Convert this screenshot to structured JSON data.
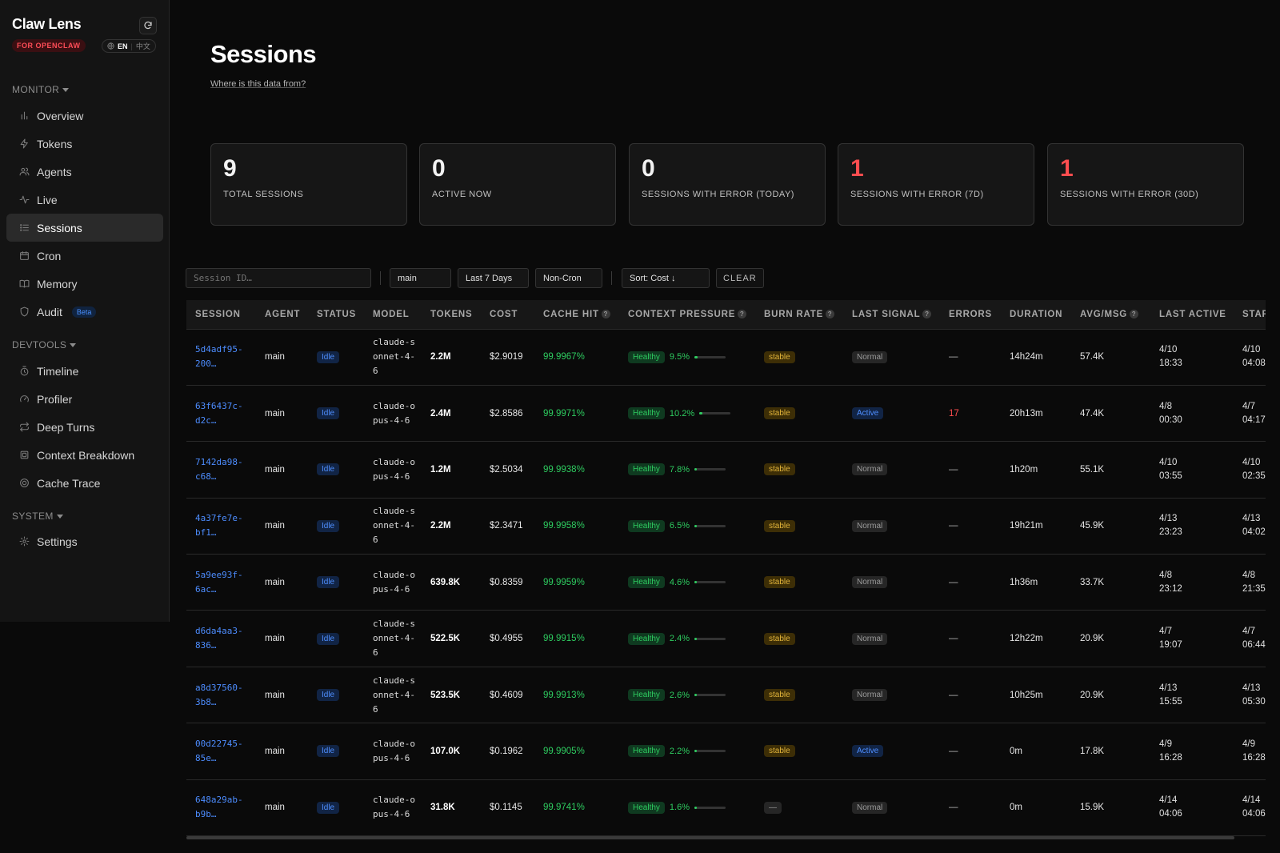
{
  "app": {
    "title": "Claw Lens",
    "badge": "FOR OPENCLAW",
    "lang_en": "EN",
    "lang_sep": "|",
    "lang_zh": "中文"
  },
  "sidebar": {
    "sections": [
      {
        "label": "MONITOR",
        "items": [
          {
            "label": "Overview",
            "icon": "bar-chart-icon"
          },
          {
            "label": "Tokens",
            "icon": "bolt-icon"
          },
          {
            "label": "Agents",
            "icon": "users-icon"
          },
          {
            "label": "Live",
            "icon": "activity-icon"
          },
          {
            "label": "Sessions",
            "icon": "list-icon",
            "active": true
          },
          {
            "label": "Cron",
            "icon": "calendar-icon"
          },
          {
            "label": "Memory",
            "icon": "book-icon"
          },
          {
            "label": "Audit",
            "icon": "shield-icon",
            "badge": "Beta"
          }
        ]
      },
      {
        "label": "DEVTOOLS",
        "items": [
          {
            "label": "Timeline",
            "icon": "timer-icon"
          },
          {
            "label": "Profiler",
            "icon": "gauge-icon"
          },
          {
            "label": "Deep Turns",
            "icon": "repeat-icon"
          },
          {
            "label": "Context Breakdown",
            "icon": "layers-icon"
          },
          {
            "label": "Cache Trace",
            "icon": "target-icon"
          }
        ]
      },
      {
        "label": "SYSTEM",
        "items": [
          {
            "label": "Settings",
            "icon": "gear-icon"
          }
        ]
      }
    ]
  },
  "main": {
    "title": "Sessions",
    "data_link": "Where is this data from?"
  },
  "stats": [
    {
      "value": "9",
      "label": "TOTAL SESSIONS",
      "error": false
    },
    {
      "value": "0",
      "label": "ACTIVE NOW",
      "error": false
    },
    {
      "value": "0",
      "label": "SESSIONS WITH ERROR (TODAY)",
      "error": false
    },
    {
      "value": "1",
      "label": "SESSIONS WITH ERROR (7D)",
      "error": true
    },
    {
      "value": "1",
      "label": "SESSIONS WITH ERROR (30D)",
      "error": true
    }
  ],
  "filters": {
    "session_placeholder": "Session ID…",
    "agent": "main",
    "range": "Last 7 Days",
    "cron": "Non-Cron",
    "sort": "Sort: Cost ↓",
    "clear": "CLEAR"
  },
  "table": {
    "columns": [
      {
        "label": "SESSION",
        "help": false
      },
      {
        "label": "AGENT",
        "help": false
      },
      {
        "label": "STATUS",
        "help": false
      },
      {
        "label": "MODEL",
        "help": false
      },
      {
        "label": "TOKENS",
        "help": false
      },
      {
        "label": "COST",
        "help": false
      },
      {
        "label": "CACHE HIT",
        "help": true
      },
      {
        "label": "CONTEXT PRESSURE",
        "help": true
      },
      {
        "label": "BURN RATE",
        "help": true
      },
      {
        "label": "LAST SIGNAL",
        "help": true
      },
      {
        "label": "ERRORS",
        "help": false
      },
      {
        "label": "DURATION",
        "help": false
      },
      {
        "label": "AVG/MSG",
        "help": true
      },
      {
        "label": "LAST ACTIVE",
        "help": false
      },
      {
        "label": "STARTED",
        "help": false
      }
    ],
    "rows": [
      {
        "session": "5d4adf95-200…",
        "agent": "main",
        "status": "Idle",
        "model": "claude-sonnet-4-6",
        "tokens": "2.2M",
        "cost": "$2.9019",
        "cache": "99.9967%",
        "ctx_label": "Healthy",
        "ctx_pct": "9.5%",
        "ctx_frac": 0.095,
        "burn": "stable",
        "signal": "Normal",
        "errors": "—",
        "duration": "14h24m",
        "avg": "57.4K",
        "last_date": "4/10",
        "last_time": "18:33",
        "start_date": "4/10",
        "start_time": "04:08"
      },
      {
        "session": "63f6437c-d2c…",
        "agent": "main",
        "status": "Idle",
        "model": "claude-opus-4-6",
        "tokens": "2.4M",
        "cost": "$2.8586",
        "cache": "99.9971%",
        "ctx_label": "Healthy",
        "ctx_pct": "10.2%",
        "ctx_frac": 0.102,
        "burn": "stable",
        "signal": "Active",
        "errors": "17",
        "duration": "20h13m",
        "avg": "47.4K",
        "last_date": "4/8",
        "last_time": "00:30",
        "start_date": "4/7",
        "start_time": "04:17"
      },
      {
        "session": "7142da98-c68…",
        "agent": "main",
        "status": "Idle",
        "model": "claude-opus-4-6",
        "tokens": "1.2M",
        "cost": "$2.5034",
        "cache": "99.9938%",
        "ctx_label": "Healthy",
        "ctx_pct": "7.8%",
        "ctx_frac": 0.078,
        "burn": "stable",
        "signal": "Normal",
        "errors": "—",
        "duration": "1h20m",
        "avg": "55.1K",
        "last_date": "4/10",
        "last_time": "03:55",
        "start_date": "4/10",
        "start_time": "02:35"
      },
      {
        "session": "4a37fe7e-bf1…",
        "agent": "main",
        "status": "Idle",
        "model": "claude-sonnet-4-6",
        "tokens": "2.2M",
        "cost": "$2.3471",
        "cache": "99.9958%",
        "ctx_label": "Healthy",
        "ctx_pct": "6.5%",
        "ctx_frac": 0.065,
        "burn": "stable",
        "signal": "Normal",
        "errors": "—",
        "duration": "19h21m",
        "avg": "45.9K",
        "last_date": "4/13",
        "last_time": "23:23",
        "start_date": "4/13",
        "start_time": "04:02"
      },
      {
        "session": "5a9ee93f-6ac…",
        "agent": "main",
        "status": "Idle",
        "model": "claude-opus-4-6",
        "tokens": "639.8K",
        "cost": "$0.8359",
        "cache": "99.9959%",
        "ctx_label": "Healthy",
        "ctx_pct": "4.6%",
        "ctx_frac": 0.046,
        "burn": "stable",
        "signal": "Normal",
        "errors": "—",
        "duration": "1h36m",
        "avg": "33.7K",
        "last_date": "4/8",
        "last_time": "23:12",
        "start_date": "4/8",
        "start_time": "21:35"
      },
      {
        "session": "d6da4aa3-836…",
        "agent": "main",
        "status": "Idle",
        "model": "claude-sonnet-4-6",
        "tokens": "522.5K",
        "cost": "$0.4955",
        "cache": "99.9915%",
        "ctx_label": "Healthy",
        "ctx_pct": "2.4%",
        "ctx_frac": 0.024,
        "burn": "stable",
        "signal": "Normal",
        "errors": "—",
        "duration": "12h22m",
        "avg": "20.9K",
        "last_date": "4/7",
        "last_time": "19:07",
        "start_date": "4/7",
        "start_time": "06:44"
      },
      {
        "session": "a8d37560-3b8…",
        "agent": "main",
        "status": "Idle",
        "model": "claude-sonnet-4-6",
        "tokens": "523.5K",
        "cost": "$0.4609",
        "cache": "99.9913%",
        "ctx_label": "Healthy",
        "ctx_pct": "2.6%",
        "ctx_frac": 0.026,
        "burn": "stable",
        "signal": "Normal",
        "errors": "—",
        "duration": "10h25m",
        "avg": "20.9K",
        "last_date": "4/13",
        "last_time": "15:55",
        "start_date": "4/13",
        "start_time": "05:30"
      },
      {
        "session": "00d22745-85e…",
        "agent": "main",
        "status": "Idle",
        "model": "claude-opus-4-6",
        "tokens": "107.0K",
        "cost": "$0.1962",
        "cache": "99.9905%",
        "ctx_label": "Healthy",
        "ctx_pct": "2.2%",
        "ctx_frac": 0.022,
        "burn": "stable",
        "signal": "Active",
        "errors": "—",
        "duration": "0m",
        "avg": "17.8K",
        "last_date": "4/9",
        "last_time": "16:28",
        "start_date": "4/9",
        "start_time": "16:28"
      },
      {
        "session": "648a29ab-b9b…",
        "agent": "main",
        "status": "Idle",
        "model": "claude-opus-4-6",
        "tokens": "31.8K",
        "cost": "$0.1145",
        "cache": "99.9741%",
        "ctx_label": "Healthy",
        "ctx_pct": "1.6%",
        "ctx_frac": 0.016,
        "burn": "—",
        "signal": "Normal",
        "errors": "—",
        "duration": "0m",
        "avg": "15.9K",
        "last_date": "4/14",
        "last_time": "04:06",
        "start_date": "4/14",
        "start_time": "04:06"
      }
    ]
  }
}
